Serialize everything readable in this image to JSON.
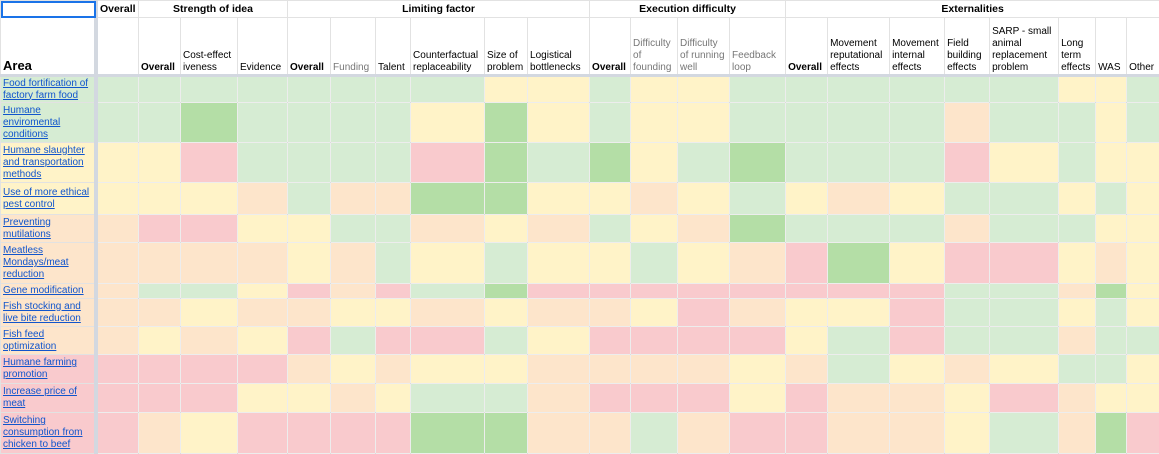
{
  "colors": {
    "G": "#b4dea6",
    "g": "#d6ecd3",
    "y": "#fff3c8",
    "o": "#fde5cb",
    "r": "#f9cacd"
  },
  "groups": [
    {
      "label": "Overall",
      "span": 1
    },
    {
      "label": "Strength of idea",
      "span": 3
    },
    {
      "label": "Limiting factor",
      "span": 6
    },
    {
      "label": "Execution difficulty",
      "span": 4
    },
    {
      "label": "Externalities",
      "span": 8
    }
  ],
  "area_header": "Area",
  "columns": [
    {
      "label": "",
      "style": ""
    },
    {
      "label": "Overall",
      "style": "bold"
    },
    {
      "label": "Cost-effect iveness",
      "style": ""
    },
    {
      "label": "Evidence",
      "style": ""
    },
    {
      "label": "Overall",
      "style": "bold"
    },
    {
      "label": "Funding",
      "style": "gray"
    },
    {
      "label": "Talent",
      "style": ""
    },
    {
      "label": "Counterfactual replaceability",
      "style": ""
    },
    {
      "label": "Size of problem",
      "style": ""
    },
    {
      "label": "Logistical bottlenecks",
      "style": ""
    },
    {
      "label": "Overall",
      "style": "bold"
    },
    {
      "label": "Difficulty of founding",
      "style": "gray"
    },
    {
      "label": "Difficulty of running well",
      "style": "gray"
    },
    {
      "label": "Feedback loop",
      "style": "gray"
    },
    {
      "label": "Overall",
      "style": "bold"
    },
    {
      "label": "Movement reputational effects",
      "style": ""
    },
    {
      "label": "Movement internal effects",
      "style": ""
    },
    {
      "label": "Field building effects",
      "style": ""
    },
    {
      "label": "SARP - small animal replacement problem",
      "style": ""
    },
    {
      "label": "Long term effects",
      "style": ""
    },
    {
      "label": "WAS",
      "style": ""
    },
    {
      "label": "Other",
      "style": ""
    }
  ],
  "rows": [
    {
      "area": "Food fortification of factory farm food",
      "cells": "g g g g g g g g y y g y y g g g g g g y y g"
    },
    {
      "area": "Humane enviromental conditions",
      "cells": "g g G g g g g y G y g y y g g g g o g g y g"
    },
    {
      "area": "Humane slaughter and transportation methods",
      "cells": "y y r g g g g r G g G y g G g g g r y g y y"
    },
    {
      "area": "Use of more ethical pest control",
      "cells": "y y y o g o o G G y y o y g y o y g g y g y"
    },
    {
      "area": "Preventing mutilations",
      "cells": "o r r y y g g o y o g y o G g g g o g g y y"
    },
    {
      "area": "Meatless Mondays/meat reduction",
      "cells": "o o o o y o g y g y y g y o r G y r r y o y"
    },
    {
      "area": "Gene modification",
      "cells": "o g g y r o r g G r r r r r r r r g g o G y"
    },
    {
      "area": "Fish stocking and live bite reduction",
      "cells": "o o y o o y y o y o o y r o y y r g g y g y"
    },
    {
      "area": "Fish feed optimization",
      "cells": "o y o y r g r r g y r r r r y g r g g o g g"
    },
    {
      "area": "Humane farming promotion",
      "cells": "r r r r o y o y y o o o o y o g y o y g g y"
    },
    {
      "area": "Increase price of meat",
      "cells": "r r r y y o y g g o r r r y r o o y r o y y"
    },
    {
      "area": "Switching consumption from chicken to beef",
      "cells": "r o y r r r r G G o o g o r r o o y g o G r"
    }
  ]
}
